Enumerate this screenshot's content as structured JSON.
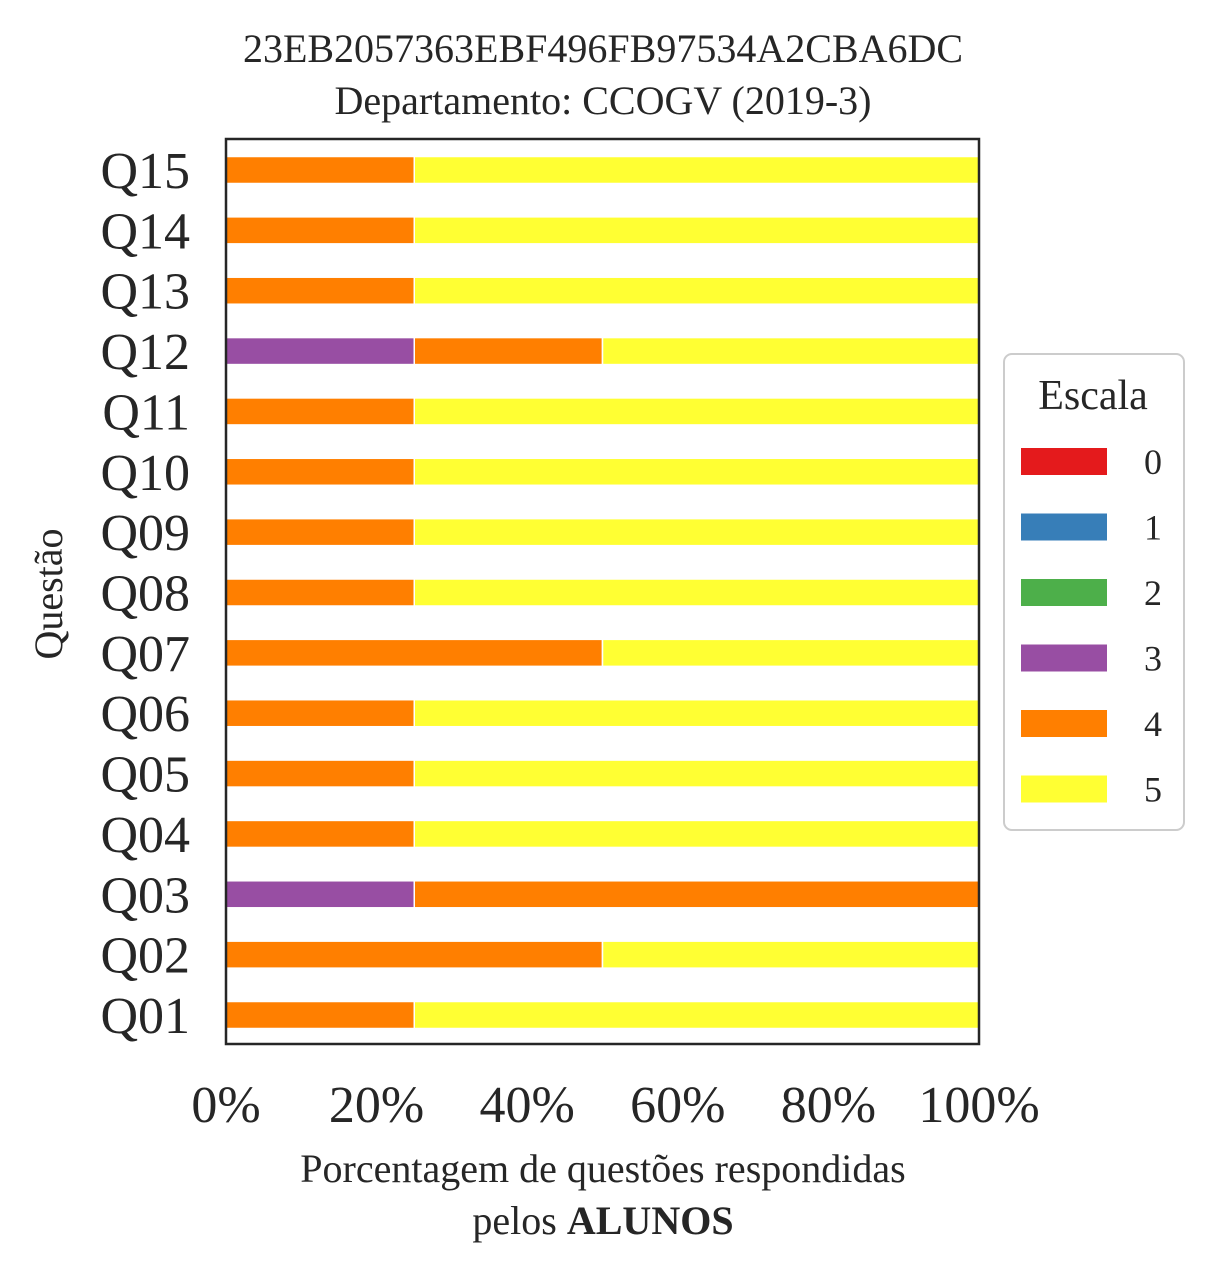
{
  "chart_data": {
    "type": "bar",
    "orientation": "horizontal",
    "stacked": true,
    "title": "23EB2057363EBF496FB97534A2CBA6DC",
    "subtitle": "Departamento: CCOGV (2019-3)",
    "xlabel": "Porcentagem de questões respondidas",
    "xlabel_line2_prefix": "pelos ",
    "xlabel_line2_bold": "ALUNOS",
    "ylabel": "Questão",
    "xlim": [
      0,
      100
    ],
    "x_ticks": [
      "0%",
      "20%",
      "40%",
      "60%",
      "80%",
      "100%"
    ],
    "grid": false,
    "legend_placement": "center-right",
    "legend": {
      "title": "Escala",
      "entries": [
        "0",
        "1",
        "2",
        "3",
        "4",
        "5"
      ]
    },
    "categories": [
      "Q01",
      "Q02",
      "Q03",
      "Q04",
      "Q05",
      "Q06",
      "Q07",
      "Q08",
      "Q09",
      "Q10",
      "Q11",
      "Q12",
      "Q13",
      "Q14",
      "Q15"
    ],
    "series": [
      {
        "name": "0",
        "color": "#e41a1c",
        "values": [
          0,
          0,
          0,
          0,
          0,
          0,
          0,
          0,
          0,
          0,
          0,
          0,
          0,
          0,
          0
        ]
      },
      {
        "name": "1",
        "color": "#377eb8",
        "values": [
          0,
          0,
          0,
          0,
          0,
          0,
          0,
          0,
          0,
          0,
          0,
          0,
          0,
          0,
          0
        ]
      },
      {
        "name": "2",
        "color": "#4daf4a",
        "values": [
          0,
          0,
          0,
          0,
          0,
          0,
          0,
          0,
          0,
          0,
          0,
          0,
          0,
          0,
          0
        ]
      },
      {
        "name": "3",
        "color": "#984ea3",
        "values": [
          0,
          0,
          25,
          0,
          0,
          0,
          0,
          0,
          0,
          0,
          0,
          25,
          0,
          0,
          0
        ]
      },
      {
        "name": "4",
        "color": "#ff7f00",
        "values": [
          25,
          50,
          75,
          25,
          25,
          25,
          50,
          25,
          25,
          25,
          25,
          25,
          25,
          25,
          25
        ]
      },
      {
        "name": "5",
        "color": "#ffff33",
        "values": [
          75,
          50,
          0,
          75,
          75,
          75,
          50,
          75,
          75,
          75,
          75,
          50,
          75,
          75,
          75
        ]
      }
    ]
  }
}
